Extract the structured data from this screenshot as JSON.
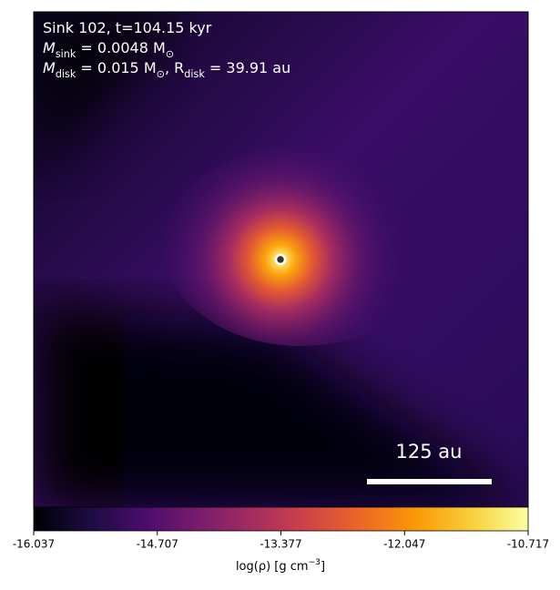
{
  "chart_data": {
    "type": "image",
    "annotations": [
      [
        "Sink 102, t=104.15 kyr"
      ],
      [
        "M",
        {
          "sub": "sink"
        },
        " = 0.0048 M",
        {
          "sub": "⊙"
        }
      ],
      [
        "M",
        {
          "sub": "disk"
        },
        " = 0.015 M",
        {
          "sub": "⊙"
        },
        ", R",
        {
          "sub": "disk"
        },
        " = 39.91 au"
      ]
    ],
    "scale_bar_label": "125 au",
    "colormap": "inferno",
    "colorbar_label": [
      "log(ρ) [g cm",
      {
        "sup": "−3"
      },
      "]"
    ],
    "clim": [
      -16.037,
      -10.717
    ],
    "cticks": [
      -16.037,
      -14.707,
      -13.377,
      -12.047,
      -10.717
    ]
  }
}
